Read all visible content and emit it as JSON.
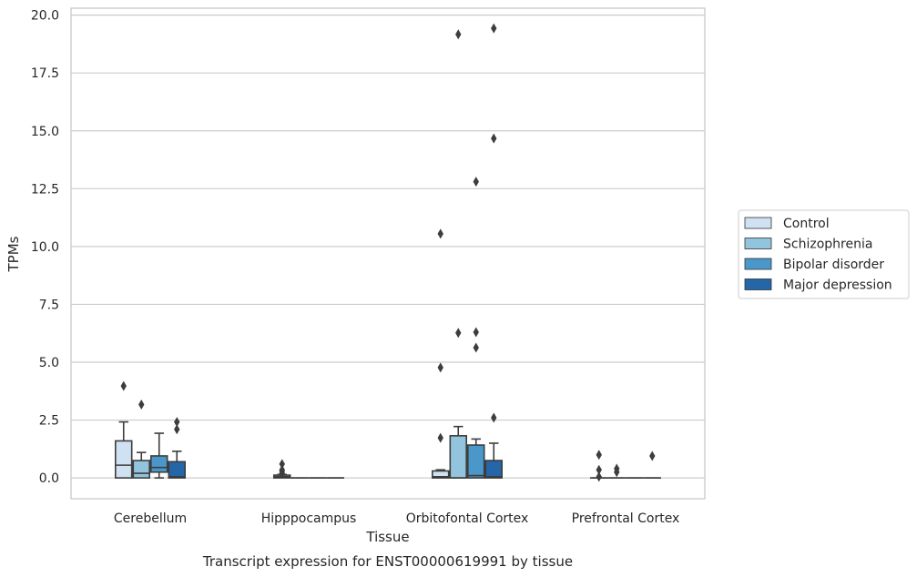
{
  "chart_data": {
    "type": "box",
    "title": "",
    "caption": "Transcript expression for ENST00000619991 by tissue",
    "xlabel": "Tissue",
    "ylabel": "TPMs",
    "ylim": [
      -0.9,
      20.3
    ],
    "yticks": [
      "0.0",
      "2.5",
      "5.0",
      "7.5",
      "10.0",
      "12.5",
      "15.0",
      "17.5",
      "20.0"
    ],
    "grid": "horizontal",
    "legend_position": "right",
    "categories": [
      "Cerebellum",
      "Hipppocampus",
      "Orbitofontal Cortex",
      "Prefrontal Cortex"
    ],
    "series": [
      {
        "name": "Control",
        "color": "#cfe1f2",
        "boxes": [
          {
            "q1": 0.0,
            "median": 0.55,
            "q3": 1.6,
            "whisker_low": 0.0,
            "whisker_high": 2.42,
            "outliers": [
              3.97
            ]
          },
          {
            "q1": 0.0,
            "median": 0.05,
            "q3": 0.12,
            "whisker_low": 0.0,
            "whisker_high": 0.15,
            "outliers": [
              0.2,
              0.3,
              0.35,
              0.6
            ]
          },
          {
            "q1": 0.0,
            "median": 0.05,
            "q3": 0.3,
            "whisker_low": 0.0,
            "whisker_high": 0.35,
            "outliers": [
              1.73,
              4.77,
              10.55
            ]
          },
          {
            "q1": 0.0,
            "median": 0.0,
            "q3": 0.0,
            "whisker_low": 0.0,
            "whisker_high": 0.0,
            "outliers": [
              0.05,
              0.35,
              1.0
            ]
          }
        ]
      },
      {
        "name": "Schizophrenia",
        "color": "#93c4de",
        "boxes": [
          {
            "q1": 0.0,
            "median": 0.2,
            "q3": 0.75,
            "whisker_low": 0.0,
            "whisker_high": 1.1,
            "outliers": [
              3.17
            ]
          },
          {
            "q1": 0.0,
            "median": 0.0,
            "q3": 0.0,
            "whisker_low": 0.0,
            "whisker_high": 0.0,
            "outliers": []
          },
          {
            "q1": 0.0,
            "median": 0.0,
            "q3": 1.82,
            "whisker_low": 0.0,
            "whisker_high": 2.22,
            "outliers": [
              6.27,
              19.17
            ]
          },
          {
            "q1": 0.0,
            "median": 0.0,
            "q3": 0.0,
            "whisker_low": 0.0,
            "whisker_high": 0.0,
            "outliers": [
              0.25,
              0.4
            ]
          }
        ]
      },
      {
        "name": "Bipolar disorder",
        "color": "#4a98c9",
        "boxes": [
          {
            "q1": 0.25,
            "median": 0.45,
            "q3": 0.95,
            "whisker_low": 0.0,
            "whisker_high": 1.93,
            "outliers": []
          },
          {
            "q1": 0.0,
            "median": 0.0,
            "q3": 0.0,
            "whisker_low": 0.0,
            "whisker_high": 0.0,
            "outliers": []
          },
          {
            "q1": 0.0,
            "median": 0.1,
            "q3": 1.42,
            "whisker_low": 0.0,
            "whisker_high": 1.68,
            "outliers": [
              5.63,
              6.3,
              12.8
            ]
          },
          {
            "q1": 0.0,
            "median": 0.0,
            "q3": 0.0,
            "whisker_low": 0.0,
            "whisker_high": 0.0,
            "outliers": []
          }
        ]
      },
      {
        "name": "Major depression",
        "color": "#2566a8",
        "boxes": [
          {
            "q1": 0.0,
            "median": 0.05,
            "q3": 0.7,
            "whisker_low": 0.0,
            "whisker_high": 1.15,
            "outliers": [
              2.1,
              2.42
            ]
          },
          {
            "q1": 0.0,
            "median": 0.0,
            "q3": 0.0,
            "whisker_low": 0.0,
            "whisker_high": 0.0,
            "outliers": []
          },
          {
            "q1": 0.0,
            "median": 0.05,
            "q3": 0.75,
            "whisker_low": 0.0,
            "whisker_high": 1.5,
            "outliers": [
              2.6,
              14.67,
              19.43
            ]
          },
          {
            "q1": 0.0,
            "median": 0.0,
            "q3": 0.0,
            "whisker_low": 0.0,
            "whisker_high": 0.0,
            "outliers": [
              0.95
            ]
          }
        ]
      }
    ]
  }
}
